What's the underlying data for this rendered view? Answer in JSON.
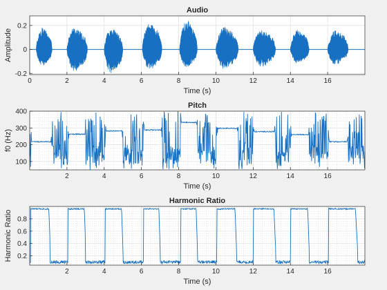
{
  "chart_data": [
    {
      "type": "area",
      "title": "Audio",
      "xlabel": "Time (s)",
      "ylabel": "Amplitude",
      "xlim": [
        0,
        18
      ],
      "ylim": [
        -0.21,
        0.28
      ],
      "x_ticks": [
        0,
        2,
        4,
        6,
        8,
        10,
        12,
        14,
        16
      ],
      "x_tick_labels": [
        "0",
        "2",
        "4",
        "6",
        "8",
        "10",
        "12",
        "14",
        "16"
      ],
      "y_ticks": [
        -0.2,
        0,
        0.2
      ],
      "y_tick_labels": [
        "-0.2",
        "0",
        "0.2"
      ],
      "grid": "major",
      "color": "#1770c2",
      "bursts": [
        {
          "start": 0.35,
          "end": 1.2,
          "max": 0.2,
          "min": -0.15
        },
        {
          "start": 2.0,
          "end": 3.1,
          "max": 0.2,
          "min": -0.2
        },
        {
          "start": 4.0,
          "end": 5.0,
          "max": 0.2,
          "min": -0.22
        },
        {
          "start": 6.05,
          "end": 7.1,
          "max": 0.25,
          "min": -0.19
        },
        {
          "start": 8.05,
          "end": 9.0,
          "max": 0.28,
          "min": -0.17
        },
        {
          "start": 10.0,
          "end": 11.2,
          "max": 0.21,
          "min": -0.18
        },
        {
          "start": 12.0,
          "end": 13.2,
          "max": 0.18,
          "min": -0.16
        },
        {
          "start": 14.0,
          "end": 15.0,
          "max": 0.18,
          "min": -0.13
        },
        {
          "start": 16.0,
          "end": 17.1,
          "max": 0.18,
          "min": -0.14
        }
      ]
    },
    {
      "type": "line",
      "title": "Pitch",
      "xlabel": "Time (s)",
      "ylabel": "f0 (Hz)",
      "xlim": [
        0,
        18
      ],
      "ylim": [
        50,
        400
      ],
      "x_ticks": [
        2,
        4,
        6,
        8,
        10,
        12,
        14,
        16
      ],
      "x_tick_labels": [
        "2",
        "4",
        "6",
        "8",
        "10",
        "12",
        "14",
        "16"
      ],
      "y_ticks": [
        100,
        200,
        300,
        400
      ],
      "y_tick_labels": [
        "100",
        "200",
        "300",
        "400"
      ],
      "grid": "major+minor",
      "color": "#1770c2",
      "voiced_segments": [
        {
          "start": 0.05,
          "end": 1.2,
          "f0": 218
        },
        {
          "start": 2.05,
          "end": 3.0,
          "f0": 263
        },
        {
          "start": 4.05,
          "end": 5.0,
          "f0": 282
        },
        {
          "start": 6.1,
          "end": 7.1,
          "f0": 288
        },
        {
          "start": 8.1,
          "end": 9.0,
          "f0": 333
        },
        {
          "start": 10.05,
          "end": 11.2,
          "f0": 298
        },
        {
          "start": 12.0,
          "end": 13.2,
          "f0": 278
        },
        {
          "start": 14.0,
          "end": 15.0,
          "f0": 260
        },
        {
          "start": 16.05,
          "end": 17.1,
          "f0": 218
        }
      ]
    },
    {
      "type": "line",
      "title": "Harmonic Ratio",
      "xlabel": "Time (s)",
      "ylabel": "Harmonic Ratio",
      "xlim": [
        0,
        18
      ],
      "ylim": [
        0.05,
        1.0
      ],
      "x_ticks": [
        2,
        4,
        6,
        8,
        10,
        12,
        14,
        16
      ],
      "x_tick_labels": [
        "2",
        "4",
        "6",
        "8",
        "10",
        "12",
        "14",
        "16"
      ],
      "y_ticks": [
        0.2,
        0.4,
        0.6,
        0.8
      ],
      "y_tick_labels": [
        "0.2",
        "0.4",
        "0.6",
        "0.8"
      ],
      "grid": "major+minor",
      "color": "#1770c2",
      "voiced_level": 0.96,
      "unvoiced_level": 0.1,
      "voiced_segments": [
        {
          "start": 0.05,
          "end": 1.1
        },
        {
          "start": 2.05,
          "end": 3.0
        },
        {
          "start": 4.05,
          "end": 5.0
        },
        {
          "start": 6.1,
          "end": 7.0
        },
        {
          "start": 8.1,
          "end": 9.0
        },
        {
          "start": 10.05,
          "end": 11.1
        },
        {
          "start": 12.0,
          "end": 13.2
        },
        {
          "start": 14.0,
          "end": 15.0
        },
        {
          "start": 16.05,
          "end": 17.6
        }
      ]
    }
  ]
}
